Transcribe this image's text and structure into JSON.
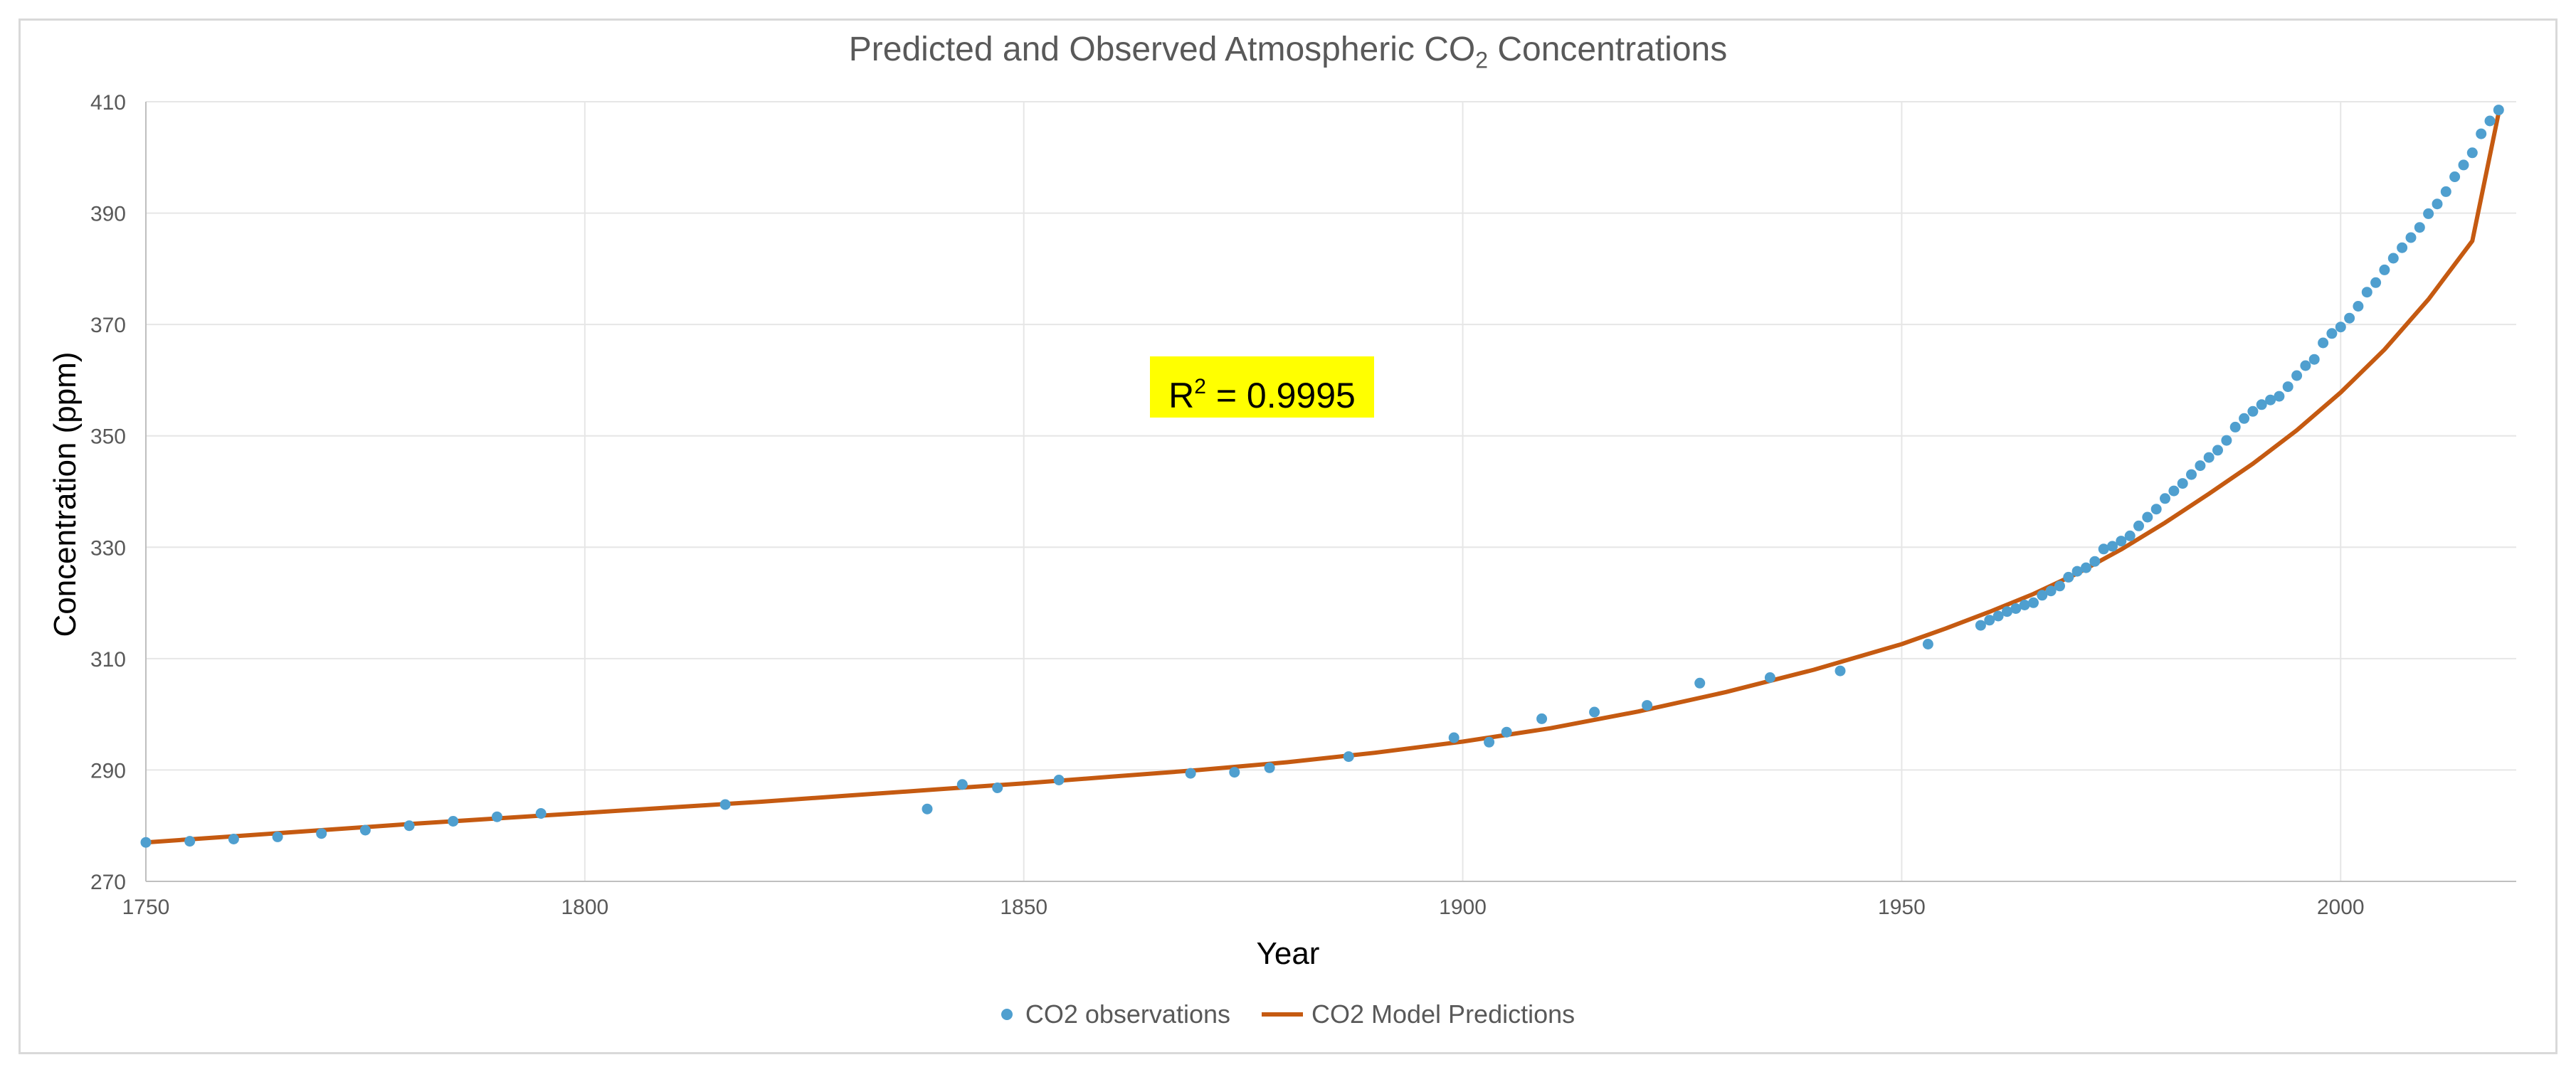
{
  "chart_data": {
    "type": "scatter",
    "title": "Predicted and Observed Atmospheric CO",
    "title_subscript": "2",
    "title_suffix": " Concentrations",
    "xlabel": "Year",
    "ylabel": "Concentration (ppm)",
    "xlim": [
      1750,
      2020
    ],
    "ylim": [
      270,
      410
    ],
    "xticks": [
      1750,
      1800,
      1850,
      1900,
      1950,
      2000
    ],
    "yticks": [
      270,
      290,
      310,
      330,
      350,
      370,
      390,
      410
    ],
    "grid": true,
    "legend_position": "bottom",
    "annotation": {
      "prefix": "R",
      "superscript": "2",
      "text": " = 0.9995"
    },
    "series": [
      {
        "name": "CO2 observations",
        "type": "scatter",
        "color": "#4f9fcf",
        "x": [
          1750,
          1755,
          1760,
          1765,
          1770,
          1775,
          1780,
          1785,
          1790,
          1795,
          1816,
          1839,
          1843,
          1847,
          1854,
          1869,
          1874,
          1878,
          1887,
          1899,
          1903,
          1905,
          1909,
          1915,
          1921,
          1927,
          1935,
          1943,
          1953,
          1959,
          1960,
          1961,
          1962,
          1963,
          1964,
          1965,
          1966,
          1967,
          1968,
          1969,
          1970,
          1971,
          1972,
          1973,
          1974,
          1975,
          1976,
          1977,
          1978,
          1979,
          1980,
          1981,
          1982,
          1983,
          1984,
          1985,
          1986,
          1987,
          1988,
          1989,
          1990,
          1991,
          1992,
          1993,
          1994,
          1995,
          1996,
          1997,
          1998,
          1999,
          2000,
          2001,
          2002,
          2003,
          2004,
          2005,
          2006,
          2007,
          2008,
          2009,
          2010,
          2011,
          2012,
          2013,
          2014,
          2015,
          2016,
          2017,
          2018
        ],
        "values": [
          277.0,
          277.2,
          277.6,
          278.0,
          278.6,
          279.2,
          280.0,
          280.8,
          281.6,
          282.2,
          283.8,
          283.0,
          287.4,
          286.8,
          288.2,
          289.4,
          289.6,
          290.4,
          292.4,
          295.8,
          295.0,
          296.8,
          299.2,
          300.4,
          301.6,
          305.6,
          306.6,
          307.8,
          312.6,
          315.97,
          316.91,
          317.64,
          318.45,
          318.99,
          319.62,
          320.04,
          321.38,
          322.16,
          323.04,
          324.62,
          325.68,
          326.32,
          327.45,
          329.68,
          330.18,
          331.11,
          332.04,
          333.83,
          335.4,
          336.84,
          338.75,
          340.11,
          341.45,
          343.05,
          344.65,
          346.12,
          347.42,
          349.19,
          351.57,
          353.12,
          354.39,
          355.61,
          356.45,
          357.1,
          358.83,
          360.82,
          362.61,
          363.73,
          366.7,
          368.38,
          369.55,
          371.14,
          373.28,
          375.8,
          377.52,
          379.8,
          381.9,
          383.79,
          385.6,
          387.43,
          389.9,
          391.65,
          393.85,
          396.52,
          398.65,
          400.83,
          404.24,
          406.55,
          408.52
        ]
      },
      {
        "name": "CO2 Model Predictions",
        "type": "line",
        "color": "#c55a11",
        "x": [
          1750,
          1760,
          1770,
          1780,
          1790,
          1800,
          1810,
          1820,
          1830,
          1840,
          1850,
          1860,
          1870,
          1880,
          1890,
          1900,
          1910,
          1920,
          1930,
          1940,
          1950,
          1955,
          1960,
          1965,
          1970,
          1975,
          1980,
          1985,
          1990,
          1995,
          2000,
          2005,
          2010,
          2015,
          2018
        ],
        "values": [
          277.0,
          278.1,
          279.2,
          280.3,
          281.3,
          282.3,
          283.3,
          284.3,
          285.4,
          286.5,
          287.6,
          288.8,
          290.0,
          291.4,
          293.1,
          295.1,
          297.5,
          300.5,
          304.0,
          308.0,
          312.6,
          315.4,
          318.4,
          321.6,
          325.3,
          329.6,
          334.4,
          339.6,
          345.0,
          351.0,
          357.8,
          365.5,
          374.5,
          385.0,
          408.0
        ]
      }
    ]
  },
  "legend": {
    "items": [
      {
        "label": "CO2 observations"
      },
      {
        "label": "CO2 Model Predictions"
      }
    ]
  }
}
